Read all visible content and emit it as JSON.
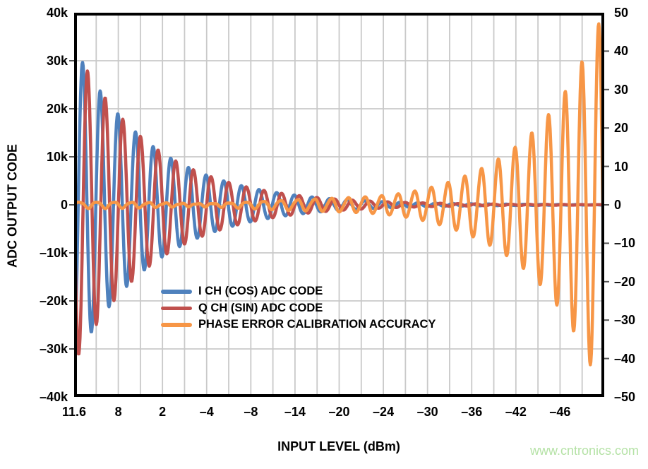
{
  "figure": {
    "background": "#ffffff",
    "watermark": {
      "text": "www.cntronics.com",
      "color": "#b5e2a6"
    }
  },
  "chart_data": {
    "type": "line",
    "title": "",
    "grid": true,
    "grid_color": "#c9c9c9",
    "border_color": "#000000",
    "legend_position": "inside-center-left",
    "x_axis": {
      "label": "INPUT LEVEL (dBm)",
      "divisions": 24,
      "tick_every_divisions": 2,
      "tick_labels": [
        "11.6",
        "8",
        "2",
        "–4",
        "–8",
        "–14",
        "–20",
        "–24",
        "–30",
        "–36",
        "–42",
        "–46"
      ],
      "range_note": "swept from +11.6 dBm at left edge to about –50 dBm at right edge"
    },
    "y_axis_left": {
      "label": "ADC OUTPUT CODE",
      "min": -40000,
      "max": 40000,
      "tick_step": 10000,
      "tick_labels": [
        "40k",
        "30k",
        "20k",
        "10k",
        "0",
        "–10k",
        "–20k",
        "–30k",
        "–40k"
      ]
    },
    "y_axis_right": {
      "label": "",
      "min": -50,
      "max": 50,
      "tick_step": 10,
      "tick_labels": [
        "50",
        "40",
        "30",
        "20",
        "10",
        "0",
        "–10",
        "–20",
        "–30",
        "–40",
        "–50"
      ]
    },
    "series": [
      {
        "name": "I CH (COS) ADC CODE",
        "color": "#4F81BD",
        "axis": "left",
        "waveform": "cosine",
        "line_width": 4.5,
        "period_frac": 0.03329,
        "peak_at_frac": 0.01598,
        "envelope": "exponential-decay",
        "env_a0": 0,
        "env_a1": 33000,
        "env_k": -6.7,
        "envelope_peaks": [
          {
            "x_frac": 0.016,
            "y": 30200
          },
          {
            "x_frac": 0.049,
            "y": 24800
          },
          {
            "x_frac": 0.083,
            "y": 19500
          },
          {
            "x_frac": 0.116,
            "y": 15300
          },
          {
            "x_frac": 0.149,
            "y": 11900
          },
          {
            "x_frac": 0.183,
            "y": 10000
          },
          {
            "x_frac": 0.216,
            "y": 7600
          },
          {
            "x_frac": 0.249,
            "y": 6200
          },
          {
            "x_frac": 0.283,
            "y": 5000
          },
          {
            "x_frac": 0.316,
            "y": 4000
          },
          {
            "x_frac": 1.0,
            "y": 40
          }
        ]
      },
      {
        "name": "Q CH (SIN) ADC CODE",
        "color": "#C0504D",
        "axis": "left",
        "waveform": "sine (lags I channel by ~90°)",
        "line_width": 4.5,
        "period_frac": 0.03329,
        "peak_at_frac": 0.0253,
        "envelope": "exponential-decay",
        "env_a0": 0,
        "env_a1": 33000,
        "env_k": -6.7,
        "envelope_peaks": [
          {
            "x_frac": 0.025,
            "y": 29800
          },
          {
            "x_frac": 0.059,
            "y": 24600
          },
          {
            "x_frac": 0.092,
            "y": 19400
          },
          {
            "x_frac": 0.125,
            "y": 15200
          },
          {
            "x_frac": 0.159,
            "y": 11800
          },
          {
            "x_frac": 0.192,
            "y": 9900
          },
          {
            "x_frac": 1.0,
            "y": 40
          }
        ]
      },
      {
        "name": "PHASE ERROR CALIBRATION ACCURACY",
        "color": "#F79646",
        "axis": "right",
        "waveform": "cosine",
        "line_width": 4.5,
        "period_frac": 0.031558,
        "peak_at_frac": 0.98935,
        "envelope": "exponential-growth",
        "env_a0": 0.5,
        "env_a1": 0.0256,
        "env_k": 7.59,
        "jitter_amp": 0.28,
        "envelope_peaks": [
          {
            "x_frac": 0.675,
            "y": 4.0
          },
          {
            "x_frac": 0.706,
            "y": 4.9
          },
          {
            "x_frac": 0.738,
            "y": 6.1
          },
          {
            "x_frac": 0.77,
            "y": 8.0
          },
          {
            "x_frac": 0.801,
            "y": 9.6
          },
          {
            "x_frac": 0.833,
            "y": 12.9
          },
          {
            "x_frac": 0.864,
            "y": 16.9
          },
          {
            "x_frac": 0.896,
            "y": 21.5
          },
          {
            "x_frac": 0.927,
            "y": 26.6
          },
          {
            "x_frac": 0.958,
            "y": 35.9
          },
          {
            "x_frac": 0.989,
            "y": 46.6
          }
        ]
      }
    ]
  }
}
